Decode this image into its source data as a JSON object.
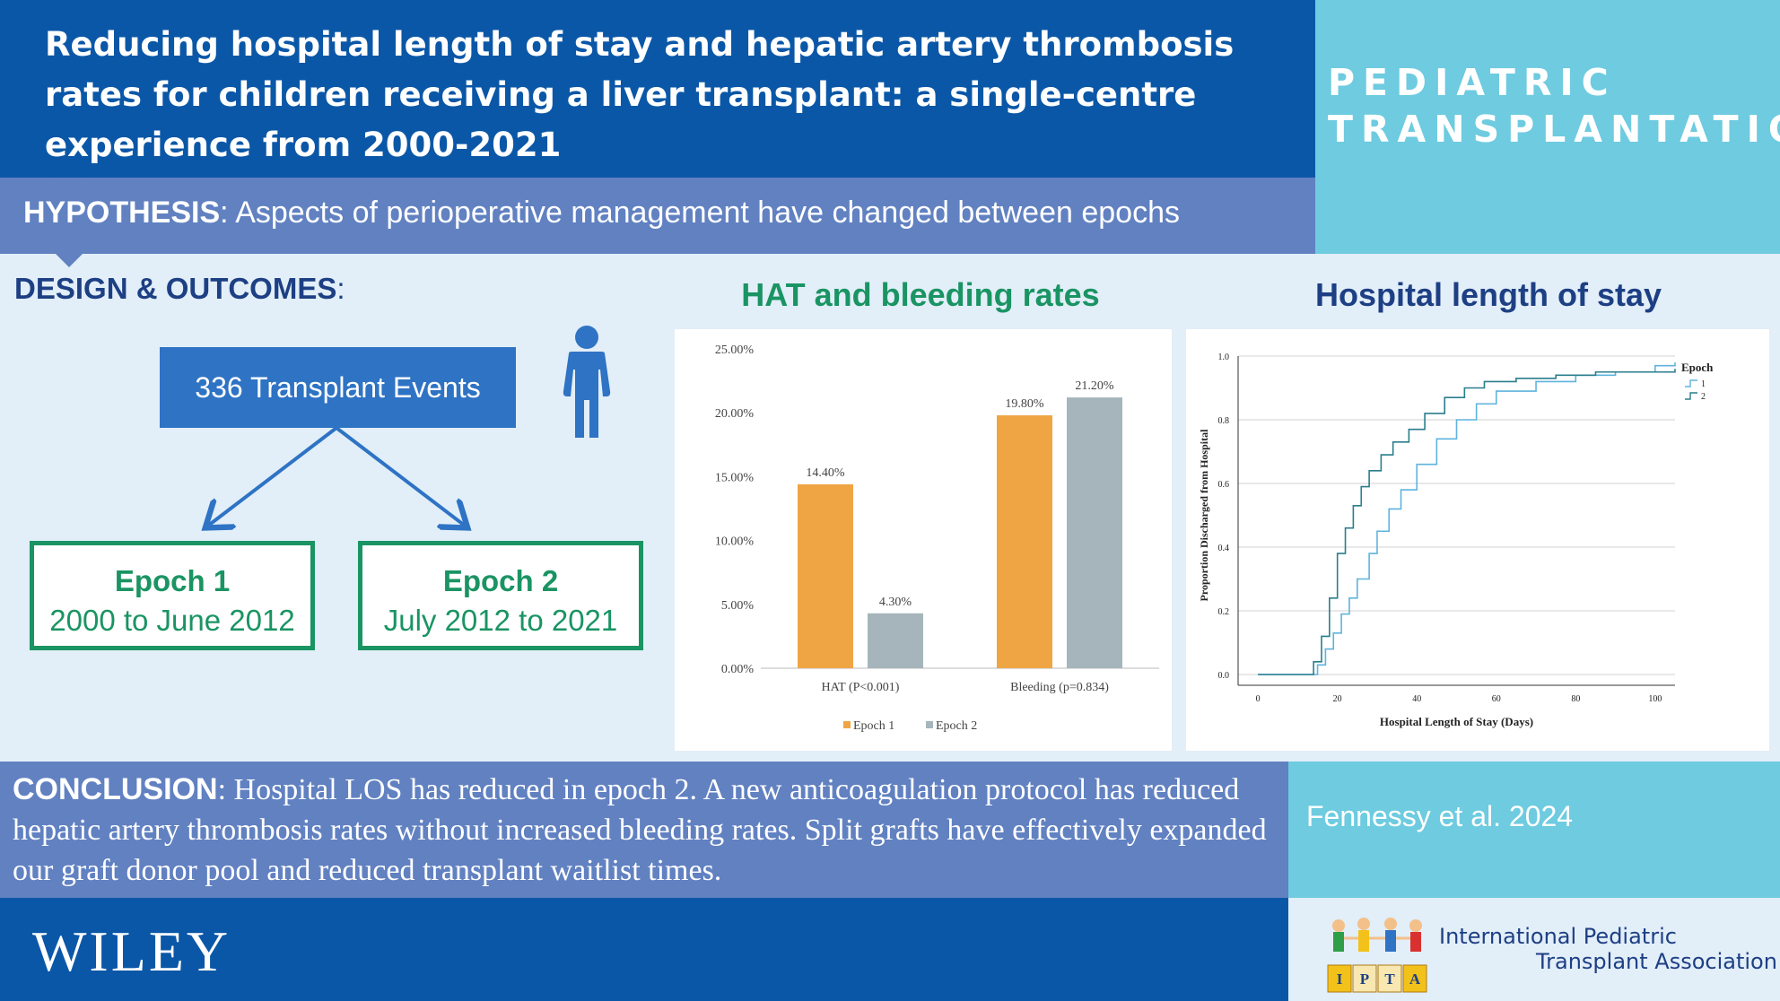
{
  "header": {
    "title": "Reducing hospital length of stay and hepatic artery thrombosis rates for children receiving a liver transplant: a single-centre experience from 2000-2021",
    "journal_line1": "PEDIATRIC",
    "journal_line2": "TRANSPLANTATION"
  },
  "hypothesis": {
    "label": "HYPOTHESIS",
    "text": ": Aspects of perioperative management have changed between epochs"
  },
  "design": {
    "heading": "DESIGN & OUTCOMES",
    "colon": ":",
    "events": "336 Transplant Events",
    "icon": "person-icon",
    "epoch1_title": "Epoch 1",
    "epoch1_range": "2000 to June 2012",
    "epoch2_title": "Epoch 2",
    "epoch2_range": "July 2012 to 2021"
  },
  "chart_data": [
    {
      "type": "bar",
      "title": "HAT and bleeding rates",
      "categories": [
        "HAT (P<0.001)",
        "Bleeding (p=0.834)"
      ],
      "series": [
        {
          "name": "Epoch 1",
          "values": [
            14.4,
            19.8
          ],
          "labels": [
            "14.40%",
            "19.80%"
          ],
          "color": "#f0a545"
        },
        {
          "name": "Epoch 2",
          "values": [
            4.3,
            21.2
          ],
          "labels": [
            "4.30%",
            "21.20%"
          ],
          "color": "#a6b5bc"
        }
      ],
      "yticks": [
        "0.00%",
        "5.00%",
        "10.00%",
        "15.00%",
        "20.00%",
        "25.00%"
      ],
      "ylim": [
        0,
        25
      ],
      "grid": false,
      "legend": "bottom"
    },
    {
      "type": "line",
      "title": "Hospital length of stay",
      "xlabel": "Hospital Length of Stay (Days)",
      "ylabel": "Proportion Discharged from Hospital",
      "xlim": [
        -5,
        105
      ],
      "ylim": [
        0,
        1
      ],
      "xticks": [
        "0",
        "20",
        "40",
        "60",
        "80",
        "100"
      ],
      "yticks": [
        "0.0",
        "0.2",
        "0.4",
        "0.6",
        "0.8",
        "1.0"
      ],
      "legend_title": "Epoch",
      "legend": "top-right",
      "grid": true,
      "series": [
        {
          "name": "1",
          "color": "#5fb3dd",
          "x": [
            0,
            12,
            15,
            17,
            19,
            21,
            23,
            25,
            28,
            30,
            33,
            36,
            40,
            45,
            50,
            55,
            60,
            70,
            80,
            90,
            100,
            105
          ],
          "y": [
            0,
            0,
            0.03,
            0.08,
            0.13,
            0.19,
            0.24,
            0.3,
            0.38,
            0.45,
            0.52,
            0.58,
            0.66,
            0.74,
            0.8,
            0.85,
            0.89,
            0.92,
            0.94,
            0.95,
            0.97,
            0.98
          ]
        },
        {
          "name": "2",
          "color": "#2a7e8c",
          "x": [
            0,
            12,
            14,
            16,
            18,
            20,
            22,
            24,
            26,
            28,
            31,
            34,
            38,
            42,
            47,
            52,
            57,
            65,
            75,
            85,
            95,
            105
          ],
          "y": [
            0,
            0,
            0.04,
            0.12,
            0.24,
            0.38,
            0.46,
            0.53,
            0.59,
            0.64,
            0.69,
            0.73,
            0.77,
            0.82,
            0.87,
            0.9,
            0.92,
            0.93,
            0.94,
            0.95,
            0.95,
            0.96
          ]
        }
      ]
    }
  ],
  "conclusion": {
    "label": "CONCLUSION",
    "text": ": Hospital LOS has reduced in epoch 2. A new anticoagulation protocol has reduced hepatic artery thrombosis rates without increased bleeding rates. Split grafts have effectively expanded our graft donor pool and reduced transplant waitlist times."
  },
  "citation": "Fennessy et al. 2024",
  "footer": {
    "publisher": "WILEY",
    "ipta_line1": "International Pediatric",
    "ipta_line2": "Transplant Association",
    "ipta_logo": "ipta-children-blocks-logo"
  }
}
